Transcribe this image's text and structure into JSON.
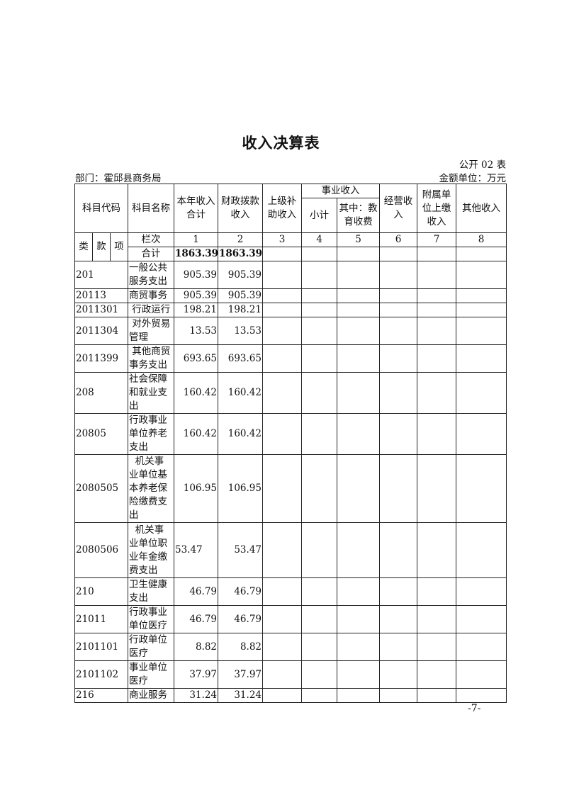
{
  "title": "收入决算表",
  "table_no": "公开 02 表",
  "department": "部门：霍邱县商务局",
  "unit": "金额单位：万元",
  "headers": {
    "code": "科目代码",
    "name": "科目名称",
    "total": "本年收入合计",
    "fiscal": "财政拨款收入",
    "superior": "上级补助收入",
    "business_group": "事业收入",
    "subtotal": "小计",
    "education": "其中：教育收费",
    "operating": "经营收入",
    "affiliated": "附属单位上缴收入",
    "other": "其他收入",
    "lei": "类",
    "kuan": "款",
    "xiang": "项",
    "lanci": "栏次",
    "col_numbers": [
      "1",
      "2",
      "3",
      "4",
      "5",
      "6",
      "7",
      "8"
    ]
  },
  "total_row": {
    "label": "合计",
    "values": [
      "1863.39",
      "1863.39",
      "",
      "",
      "",
      "",
      "",
      ""
    ]
  },
  "rows": [
    {
      "code": "201",
      "name": "一般公共服务支出",
      "values": [
        "905.39",
        "905.39",
        "",
        "",
        "",
        "",
        "",
        ""
      ]
    },
    {
      "code": "20113",
      "name": "商贸事务",
      "values": [
        "905.39",
        "905.39",
        "",
        "",
        "",
        "",
        "",
        ""
      ]
    },
    {
      "code": "2011301",
      "name": " 行政运行",
      "values": [
        "198.21",
        "198.21",
        "",
        "",
        "",
        "",
        "",
        ""
      ]
    },
    {
      "code": "2011304",
      "name": " 对外贸易管理",
      "values": [
        "13.53",
        "13.53",
        "",
        "",
        "",
        "",
        "",
        ""
      ]
    },
    {
      "code": "2011399",
      "name": " 其他商贸事务支出",
      "values": [
        "693.65",
        "693.65",
        "",
        "",
        "",
        "",
        "",
        ""
      ]
    },
    {
      "code": "208",
      "name": "社会保障和就业支出",
      "values": [
        "160.42",
        "160.42",
        "",
        "",
        "",
        "",
        "",
        ""
      ]
    },
    {
      "code": "20805",
      "name": "行政事业单位养老支出",
      "values": [
        "160.42",
        "160.42",
        "",
        "",
        "",
        "",
        "",
        ""
      ]
    },
    {
      "code": "2080505",
      "name": "  机关事业单位基本养老保险缴费支出",
      "values": [
        "106.95",
        "106.95",
        "",
        "",
        "",
        "",
        "",
        ""
      ]
    },
    {
      "code": "2080506",
      "name": "  机关事业单位职业年金缴费支出",
      "values": [
        "53.47",
        "53.47",
        "",
        "",
        "",
        "",
        "",
        ""
      ]
    },
    {
      "code": "210",
      "name": "卫生健康支出",
      "values": [
        "46.79",
        "46.79",
        "",
        "",
        "",
        "",
        "",
        ""
      ]
    },
    {
      "code": "21011",
      "name": "行政事业单位医疗",
      "values": [
        "46.79",
        "46.79",
        "",
        "",
        "",
        "",
        "",
        ""
      ]
    },
    {
      "code": "2101101",
      "name": "行政单位医疗",
      "values": [
        "8.82",
        "8.82",
        "",
        "",
        "",
        "",
        "",
        ""
      ]
    },
    {
      "code": "2101102",
      "name": "事业单位医疗",
      "values": [
        "37.97",
        "37.97",
        "",
        "",
        "",
        "",
        "",
        ""
      ]
    },
    {
      "code": "216",
      "name": "商业服务",
      "values": [
        "31.24",
        "31.24",
        "",
        "",
        "",
        "",
        "",
        ""
      ]
    }
  ],
  "page_number": "-7-"
}
